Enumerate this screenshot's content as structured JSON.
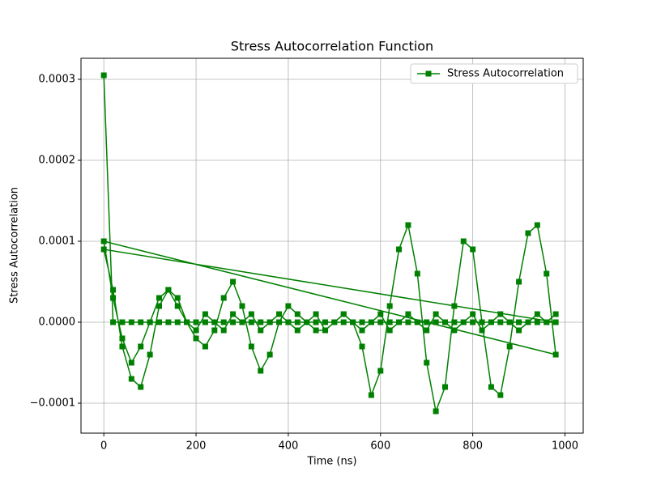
{
  "chart_data": {
    "type": "line",
    "title": "Stress Autocorrelation Function",
    "x_label": "Time (ns)",
    "y_label": "Stress Autocorrelation",
    "xlim": [
      -49.5,
      1039.5
    ],
    "ylim": [
      -0.000137,
      0.000326
    ],
    "xticks": [
      0,
      200,
      400,
      600,
      800,
      1000
    ],
    "yticks": [
      {
        "value": -0.0001,
        "label": "−0.0001"
      },
      {
        "value": 0,
        "label": "0.0000"
      },
      {
        "value": 0.0001,
        "label": "0.0001"
      },
      {
        "value": 0.0002,
        "label": "0.0002"
      },
      {
        "value": 0.0003,
        "label": "0.0003"
      }
    ],
    "grid": true,
    "legend_position": "upper-right",
    "series": [
      {
        "name": "Stress Autocorrelation",
        "color": "#008000",
        "marker": "square",
        "x": [
          0,
          20,
          40,
          60,
          80,
          100,
          120,
          140,
          160,
          180,
          200,
          220,
          240,
          260,
          280,
          300,
          320,
          340,
          360,
          380,
          400,
          420,
          440,
          460,
          480,
          500,
          520,
          540,
          560,
          580,
          600,
          620,
          640,
          660,
          680,
          700,
          720,
          740,
          760,
          780,
          800,
          820,
          840,
          860,
          880,
          900,
          920,
          940,
          960,
          980,
          0,
          20,
          40,
          60,
          80,
          100,
          120,
          140,
          160,
          180,
          200,
          220,
          240,
          260,
          280,
          300,
          320,
          340,
          360,
          380,
          400,
          420,
          440,
          460,
          480,
          500,
          520,
          540,
          560,
          580,
          600,
          620,
          640,
          660,
          680,
          700,
          720,
          740,
          760,
          780,
          800,
          820,
          840,
          860,
          880,
          900,
          920,
          940,
          960,
          980,
          0,
          20,
          40,
          60,
          80,
          100,
          120,
          140,
          160,
          180,
          200,
          220,
          240,
          260,
          280,
          300,
          320,
          340,
          360,
          380,
          400,
          420,
          440,
          460,
          480,
          500,
          520,
          540,
          560,
          580,
          600,
          620,
          640,
          660,
          680,
          700,
          720,
          740,
          760,
          780,
          800,
          820,
          840,
          860,
          880,
          900,
          920,
          940,
          960,
          980
        ],
        "values": [
          0.000305,
          0,
          0,
          0,
          0,
          0,
          0,
          0,
          0,
          0,
          0,
          0,
          0,
          0,
          0,
          0,
          0,
          0,
          0,
          0,
          0,
          0,
          0,
          0,
          0,
          0,
          0,
          0,
          0,
          0,
          0,
          0,
          0,
          0,
          0,
          0,
          0,
          0,
          0,
          0,
          0,
          0,
          0,
          0,
          0,
          0,
          0,
          0,
          0,
          0,
          9e-05,
          4e-05,
          -3e-05,
          -7e-05,
          -8e-05,
          -4e-05,
          2e-05,
          4e-05,
          3e-05,
          0,
          -2e-05,
          -3e-05,
          -1e-05,
          3e-05,
          5e-05,
          2e-05,
          -3e-05,
          -6e-05,
          -4e-05,
          0,
          2e-05,
          1e-05,
          0,
          -1e-05,
          -1e-05,
          0,
          1e-05,
          0,
          -3e-05,
          -9e-05,
          -6e-05,
          2e-05,
          9e-05,
          0.00012,
          6e-05,
          -5e-05,
          -0.00011,
          -8e-05,
          2e-05,
          0.0001,
          9e-05,
          0,
          -8e-05,
          -9e-05,
          -3e-05,
          5e-05,
          0.00011,
          0.00012,
          6e-05,
          -4e-05,
          0.0001,
          3e-05,
          -2e-05,
          -5e-05,
          -3e-05,
          0,
          3e-05,
          4e-05,
          2e-05,
          0,
          -1e-05,
          1e-05,
          0,
          -1e-05,
          1e-05,
          0,
          1e-05,
          -1e-05,
          0,
          1e-05,
          0,
          -1e-05,
          0,
          1e-05,
          -1e-05,
          0,
          1e-05,
          0,
          -1e-05,
          0,
          1e-05,
          -1e-05,
          0,
          1e-05,
          0,
          -1e-05,
          1e-05,
          0,
          -1e-05,
          0,
          1e-05,
          -1e-05,
          0,
          1e-05,
          0,
          -1e-05,
          0,
          1e-05,
          0,
          1e-05
        ]
      }
    ]
  }
}
